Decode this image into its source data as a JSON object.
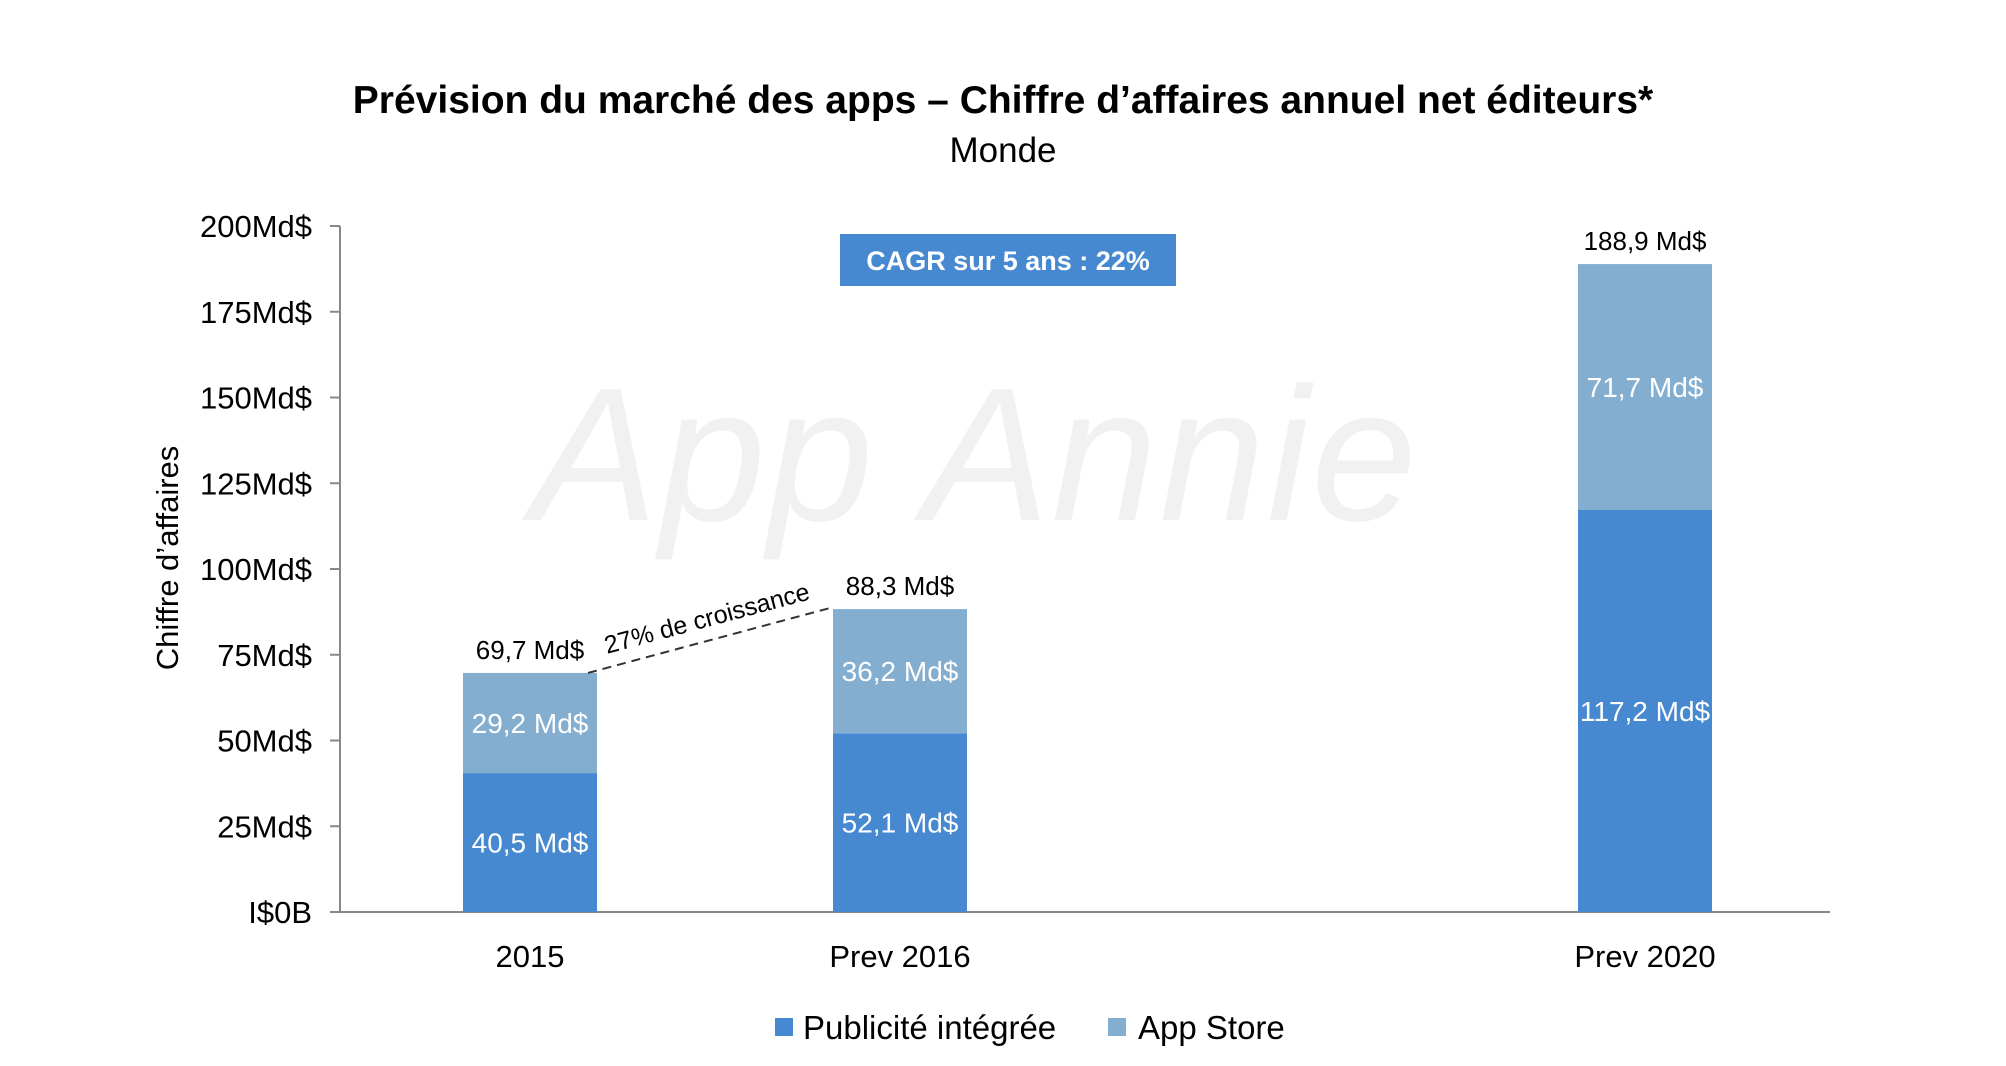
{
  "chart_data": {
    "type": "bar",
    "stacked": true,
    "title": "Prévision du marché des apps – Chiffre d’affaires annuel net éditeurs*",
    "subtitle": "Monde",
    "ylabel": "Chiffre d’affaires",
    "xlabel": "",
    "ylim": [
      0,
      200
    ],
    "yticks": [
      0,
      25,
      50,
      75,
      100,
      125,
      150,
      175,
      200
    ],
    "ytick_labels": [
      "I$0B",
      "25Md$",
      "50Md$",
      "75Md$",
      "100Md$",
      "125Md$",
      "150Md$",
      "175Md$",
      "200Md$"
    ],
    "categories": [
      "2015",
      "Prev 2016",
      "Prev 2020"
    ],
    "series": [
      {
        "name": "Publicité intégrée",
        "values": [
          40.5,
          52.1,
          117.2
        ],
        "labels": [
          "40,5 Md$",
          "52,1 Md$",
          "117,2 Md$"
        ],
        "color": "#4689d1"
      },
      {
        "name": "App Store",
        "values": [
          29.2,
          36.2,
          71.7
        ],
        "labels": [
          "29,2 Md$",
          "36,2 Md$",
          "71,7 Md$"
        ],
        "color": "#83aed0"
      }
    ],
    "totals": [
      69.7,
      88.3,
      188.9
    ],
    "total_labels": [
      "69,7 Md$",
      "88,3 Md$",
      "188,9 Md$"
    ],
    "annotations": {
      "cagr": "CAGR sur 5 ans : 22%",
      "growth": "27% de croissance"
    },
    "legend_position": "bottom",
    "grid": false
  },
  "watermark": "App Annie",
  "colors": {
    "badge": "#4689d1",
    "axis": "#888888"
  }
}
